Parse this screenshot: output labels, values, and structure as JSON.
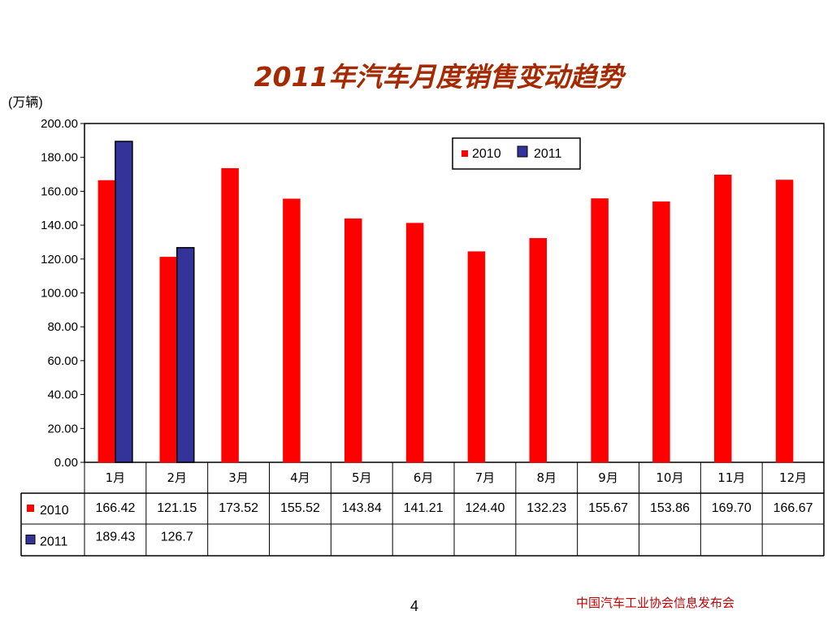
{
  "title": "2011年汽车月度销售变动趋势",
  "unit_label": "(万辆)",
  "page_number": "4",
  "footer_org": "中国汽车工业协会信息发布会",
  "colors": {
    "series_2010": "#ff0000",
    "series_2011": "#333399",
    "title": "#a52a00"
  },
  "chart_data": {
    "type": "bar",
    "categories": [
      "1月",
      "2月",
      "3月",
      "4月",
      "5月",
      "6月",
      "7月",
      "8月",
      "9月",
      "10月",
      "11月",
      "12月"
    ],
    "series": [
      {
        "name": "2010",
        "color": "#ff0000",
        "values": [
          166.42,
          121.15,
          173.52,
          155.52,
          143.84,
          141.21,
          124.4,
          132.23,
          155.67,
          153.86,
          169.7,
          166.67
        ],
        "labels": [
          "166.42",
          "121.15",
          "173.52",
          "155.52",
          "143.84",
          "141.21",
          "124.40",
          "132.23",
          "155.67",
          "153.86",
          "169.70",
          "166.67"
        ]
      },
      {
        "name": "2011",
        "color": "#333399",
        "values": [
          189.43,
          126.7,
          null,
          null,
          null,
          null,
          null,
          null,
          null,
          null,
          null,
          null
        ],
        "labels": [
          "189.43",
          "126.7",
          "",
          "",
          "",
          "",
          "",
          "",
          "",
          "",
          "",
          ""
        ]
      }
    ],
    "ylim": [
      0,
      200
    ],
    "yticks": [
      "0.00",
      "20.00",
      "40.00",
      "60.00",
      "80.00",
      "100.00",
      "120.00",
      "140.00",
      "160.00",
      "180.00",
      "200.00"
    ],
    "legend": [
      "2010",
      "2011"
    ],
    "legend_position": "top-right",
    "data_table": true
  }
}
